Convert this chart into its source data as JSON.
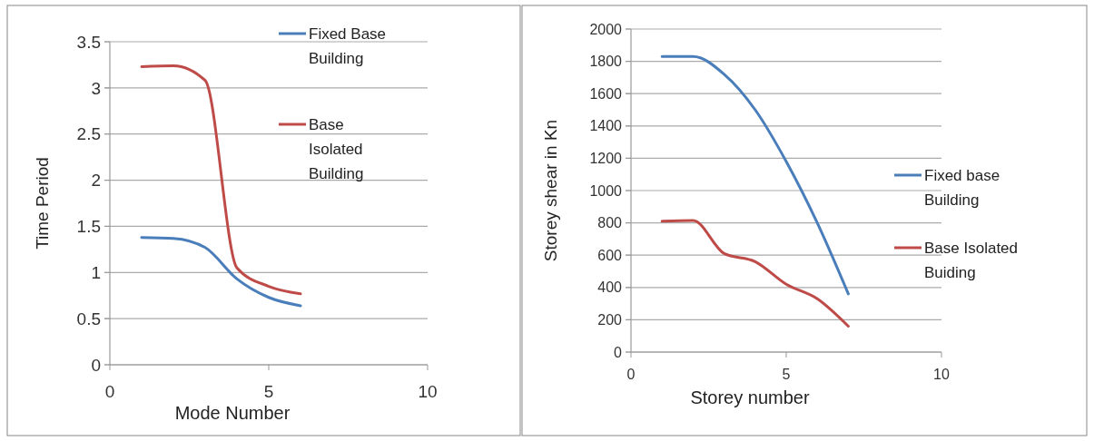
{
  "chart_data": [
    {
      "type": "line",
      "xlabel": "Mode Number",
      "ylabel": "Time Period",
      "x": [
        1,
        2,
        3,
        4,
        5,
        6
      ],
      "xlim": [
        0,
        10
      ],
      "xticks": [
        0,
        5,
        10
      ],
      "ylim": [
        0,
        3.5
      ],
      "yticks": [
        0,
        0.5,
        1,
        1.5,
        2,
        2.5,
        3,
        3.5
      ],
      "grid": "y",
      "legend": "top right",
      "marker": "none",
      "line_style": "solid",
      "series": [
        {
          "name": "Fixed Base Building",
          "color": "#4a7ebb",
          "values": [
            1.38,
            1.37,
            1.27,
            0.93,
            0.73,
            0.64
          ]
        },
        {
          "name": "Base Isolated Building",
          "color": "#be4b48",
          "values": [
            3.23,
            3.24,
            3.08,
            1.05,
            0.85,
            0.77
          ]
        }
      ]
    },
    {
      "type": "line",
      "xlabel": "Storey number",
      "ylabel": "Storey shear in Kn",
      "x": [
        1,
        2,
        3,
        4,
        5,
        6,
        7
      ],
      "xlim": [
        0,
        10
      ],
      "xticks": [
        0,
        5,
        10
      ],
      "ylim": [
        0,
        2000
      ],
      "yticks": [
        0,
        200,
        400,
        600,
        800,
        1000,
        1200,
        1400,
        1600,
        1800,
        2000
      ],
      "grid": "y",
      "legend": "right",
      "marker": "none",
      "line_style": "solid",
      "series": [
        {
          "name": "Fixed base Building",
          "color": "#4a7ebb",
          "values": [
            1830,
            1830,
            1720,
            1500,
            1180,
            800,
            360
          ]
        },
        {
          "name": "Base Isolated Buiding",
          "color": "#be4b48",
          "values": [
            810,
            815,
            610,
            560,
            420,
            330,
            160
          ]
        }
      ]
    }
  ]
}
